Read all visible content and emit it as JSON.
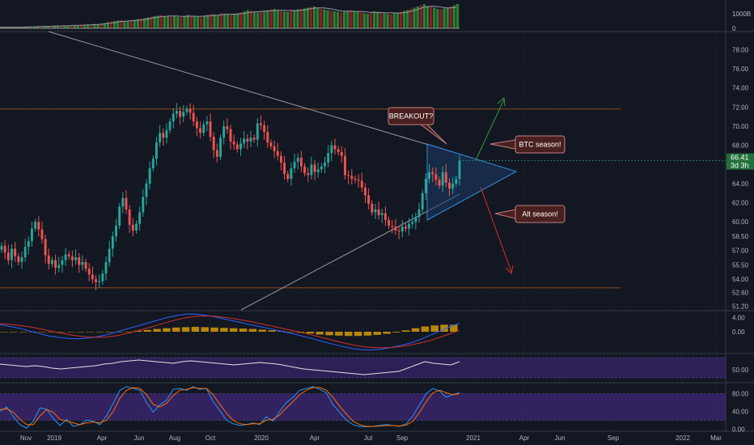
{
  "colors": {
    "background": "#131722",
    "up": "#26a69a",
    "down": "#ef5350",
    "grid": "#2a2e39",
    "axis_text": "#b2b5be",
    "level_line": "#8a4a20",
    "trendline": "#9598a1",
    "triangle_fill": "#1b3a66",
    "triangle_edge": "#2f86d1",
    "green_arrow": "#2e9b3e",
    "red_arrow": "#d63031",
    "ann_fill": "#4a1f1f",
    "ann_border": "#c08080",
    "macd_line": "#2962ff",
    "signal_line": "#d32f2f",
    "hist": "#b8860b",
    "rsi_line": "#e0e0e0",
    "band": "#4a2a8a",
    "k_line": "#2196f3",
    "d_line": "#ff6d00",
    "price_badge": "#22713a",
    "vol_up": "#2e7d32",
    "vol_down": "#8b1e2b"
  },
  "chart_data": [
    {
      "type": "candlestick",
      "title": "",
      "x_ticks": [
        "Nov",
        "2019",
        "Apr",
        "Jun",
        "Aug",
        "Oct",
        "2020",
        "Apr",
        "Jul",
        "Sep",
        "2021",
        "Apr",
        "Jun",
        "Sep",
        "2022",
        "Mar"
      ],
      "y_ticks": [
        "78.00",
        "76.00",
        "74.00",
        "72.00",
        "70.00",
        "68.00",
        "64.00",
        "62.00",
        "60.00",
        "58.50",
        "57.00",
        "55.50",
        "54.00",
        "52.60",
        "51.20"
      ],
      "ylim": [
        50.8,
        79.9
      ],
      "close_series": [
        57.5,
        56.8,
        56.0,
        57.2,
        56.4,
        55.8,
        56.3,
        57.4,
        58.0,
        59.3,
        60.0,
        59.2,
        58.2,
        56.5,
        55.6,
        56.0,
        55.2,
        55.5,
        56.0,
        56.6,
        56.4,
        56.0,
        56.3,
        55.5,
        55.8,
        55.1,
        54.5,
        54.0,
        53.7,
        53.8,
        54.6,
        55.8,
        57.2,
        58.5,
        59.6,
        61.6,
        62.5,
        61.3,
        59.7,
        59.1,
        59.8,
        61.0,
        62.6,
        64.0,
        65.6,
        66.6,
        68.3,
        69.3,
        68.8,
        69.6,
        70.5,
        71.3,
        71.6,
        71.0,
        71.5,
        71.8,
        71.4,
        70.5,
        69.8,
        69.3,
        70.2,
        70.5,
        68.9,
        67.5,
        66.8,
        68.8,
        70.0,
        69.7,
        68.4,
        68.1,
        67.6,
        68.2,
        68.7,
        68.4,
        68.8,
        68.6,
        70.3,
        70.1,
        69.4,
        68.3,
        67.9,
        67.4,
        66.9,
        66.2,
        65.0,
        64.5,
        65.6,
        66.3,
        66.7,
        65.8,
        65.1,
        64.9,
        66.0,
        65.2,
        65.5,
        65.8,
        66.2,
        67.2,
        68.0,
        67.6,
        67.3,
        66.9,
        64.9,
        64.8,
        64.5,
        64.4,
        64.3,
        63.6,
        62.8,
        61.9,
        61.0,
        61.3,
        60.7,
        60.9,
        60.2,
        59.6,
        59.5,
        59.1,
        59.0,
        59.5,
        59.3,
        59.8,
        60.0,
        60.5,
        61.3,
        63.0,
        64.5,
        65.2,
        65.0,
        64.4,
        63.8,
        65.2,
        64.1,
        63.5,
        64.0,
        64.5,
        66.4
      ],
      "horizontal_levels": [
        71.8,
        53.1
      ],
      "price_label": "66.41",
      "countdown_label": "3d 3h",
      "annotations": [
        "BREAKOUT?",
        "BTC season!",
        "Alt season!"
      ]
    },
    {
      "type": "bar",
      "title": "",
      "y_ticks": [
        "1000B",
        "0"
      ],
      "values": [
        0.04,
        0.05,
        0.04,
        0.06,
        0.05,
        0.04,
        0.05,
        0.06,
        0.07,
        0.06,
        0.08,
        0.09,
        0.07,
        0.1,
        0.08,
        0.09,
        0.11,
        0.12,
        0.1,
        0.12,
        0.11,
        0.13,
        0.14,
        0.12,
        0.15,
        0.14,
        0.16,
        0.15,
        0.18,
        0.17,
        0.2,
        0.22,
        0.25,
        0.28,
        0.3,
        0.32,
        0.34,
        0.3,
        0.28,
        0.33,
        0.35,
        0.38,
        0.4,
        0.42,
        0.45,
        0.48,
        0.5,
        0.52,
        0.55,
        0.5,
        0.48,
        0.52,
        0.5,
        0.47,
        0.45,
        0.5,
        0.55,
        0.52,
        0.5,
        0.48,
        0.45,
        0.5,
        0.55,
        0.6,
        0.58,
        0.55,
        0.62,
        0.6,
        0.57,
        0.55,
        0.6,
        0.62,
        0.65,
        0.7,
        0.75,
        0.72,
        0.68,
        0.65,
        0.7,
        0.72,
        0.75,
        0.78,
        0.8,
        0.75,
        0.72,
        0.7,
        0.68,
        0.72,
        0.75,
        0.78,
        0.8,
        0.82,
        0.85,
        0.88,
        0.9,
        0.85,
        0.8,
        0.78,
        0.75,
        0.72,
        0.7,
        0.68,
        0.65,
        0.7,
        0.72,
        0.75,
        0.7,
        0.68,
        0.65,
        0.62,
        0.6,
        0.65,
        0.7,
        0.68,
        0.65,
        0.62,
        0.6,
        0.58,
        0.62,
        0.65,
        0.68,
        0.72,
        0.75,
        0.8,
        0.85,
        0.9,
        0.95,
        1.0,
        0.92,
        0.88,
        0.85,
        0.8,
        0.78,
        0.82,
        0.85,
        0.9,
        0.95,
        1.0
      ]
    },
    {
      "type": "line",
      "title": "",
      "y_ticks": [
        "4.00",
        "0.00"
      ],
      "ylim": [
        -6,
        6
      ],
      "series": [
        {
          "values": [
            2.0,
            1.5,
            1.0,
            0.2,
            -0.5,
            -1.2,
            -1.6,
            -1.9,
            -2.0,
            -1.8,
            -1.4,
            -0.8,
            0.0,
            0.8,
            1.6,
            2.4,
            3.2,
            4.0,
            4.6,
            5.0,
            5.0,
            4.7,
            4.2,
            3.6,
            3.0,
            2.4,
            1.8,
            1.2,
            0.6,
            0.0,
            -0.6,
            -1.3,
            -2.0,
            -2.8,
            -3.5,
            -4.2,
            -4.8,
            -5.1,
            -5.2,
            -5.0,
            -4.5,
            -3.9,
            -3.2,
            -2.2,
            -1.0,
            0.2,
            1.4,
            2.4
          ]
        },
        {
          "values": [
            2.3,
            2.1,
            1.8,
            1.4,
            0.9,
            0.3,
            -0.3,
            -0.8,
            -1.2,
            -1.5,
            -1.6,
            -1.5,
            -1.1,
            -0.5,
            0.2,
            1.0,
            1.8,
            2.6,
            3.4,
            4.0,
            4.4,
            4.5,
            4.4,
            4.1,
            3.7,
            3.2,
            2.7,
            2.1,
            1.5,
            0.9,
            0.3,
            -0.3,
            -1.0,
            -1.7,
            -2.4,
            -3.1,
            -3.7,
            -4.2,
            -4.5,
            -4.6,
            -4.5,
            -4.2,
            -3.8,
            -3.2,
            -2.5,
            -1.6,
            -0.6,
            0.4
          ]
        }
      ],
      "histogram": [
        0.0,
        0.0,
        0.0,
        0.0,
        0.0,
        0.0,
        0.0,
        0.0,
        0.0,
        0.0,
        0.0,
        0.0,
        0.0,
        0.0,
        0.3,
        0.5,
        0.8,
        1.0,
        1.2,
        1.3,
        1.4,
        1.3,
        1.2,
        1.1,
        1.0,
        0.9,
        0.8,
        0.6,
        0.4,
        0.2,
        0.0,
        -0.3,
        -0.5,
        -0.8,
        -1.0,
        -1.1,
        -1.2,
        -1.2,
        -1.1,
        -0.9,
        -0.6,
        -0.2,
        0.4,
        1.0,
        1.5,
        1.8,
        2.0,
        2.0
      ]
    },
    {
      "type": "line",
      "title": "",
      "y_ticks": [
        "50.00"
      ],
      "ylim": [
        35,
        70
      ],
      "values": [
        57,
        56,
        55,
        54,
        55,
        54,
        52,
        51,
        52,
        53,
        54,
        55,
        57,
        58,
        60,
        61,
        62,
        61,
        60,
        59,
        58,
        60,
        61,
        60,
        59,
        58,
        57,
        56,
        57,
        58,
        59,
        58,
        57,
        55,
        53,
        51,
        50,
        49,
        48,
        47,
        46,
        45,
        44,
        45,
        46,
        47,
        48,
        52,
        56,
        60,
        58,
        57,
        56,
        60
      ]
    },
    {
      "type": "line",
      "title": "",
      "y_ticks": [
        "80.00",
        "40.00",
        "0.00"
      ],
      "ylim": [
        -5,
        105
      ],
      "series": [
        {
          "values": [
            40,
            50,
            28,
            10,
            2,
            18,
            48,
            45,
            24,
            8,
            22,
            6,
            10,
            20,
            18,
            10,
            30,
            58,
            88,
            96,
            92,
            88,
            60,
            38,
            55,
            65,
            90,
            92,
            88,
            96,
            90,
            92,
            62,
            42,
            20,
            12,
            8,
            10,
            14,
            10,
            28,
            18,
            40,
            60,
            72,
            88,
            92,
            96,
            90,
            82,
            55,
            38,
            20,
            10,
            6,
            5,
            6,
            8,
            10,
            8,
            6,
            12,
            30,
            55,
            80,
            92,
            86,
            72,
            78,
            82
          ]
        },
        {
          "values": [
            44,
            46,
            38,
            22,
            10,
            10,
            30,
            44,
            38,
            22,
            18,
            14,
            10,
            14,
            16,
            14,
            20,
            40,
            70,
            88,
            94,
            92,
            78,
            56,
            50,
            58,
            76,
            88,
            90,
            94,
            92,
            92,
            78,
            56,
            36,
            20,
            12,
            10,
            12,
            12,
            20,
            22,
            32,
            48,
            62,
            78,
            88,
            94,
            94,
            88,
            72,
            52,
            34,
            18,
            10,
            6,
            6,
            7,
            8,
            8,
            7,
            9,
            18,
            38,
            62,
            82,
            88,
            82,
            78,
            80
          ]
        }
      ],
      "bands": [
        20,
        80
      ]
    }
  ]
}
